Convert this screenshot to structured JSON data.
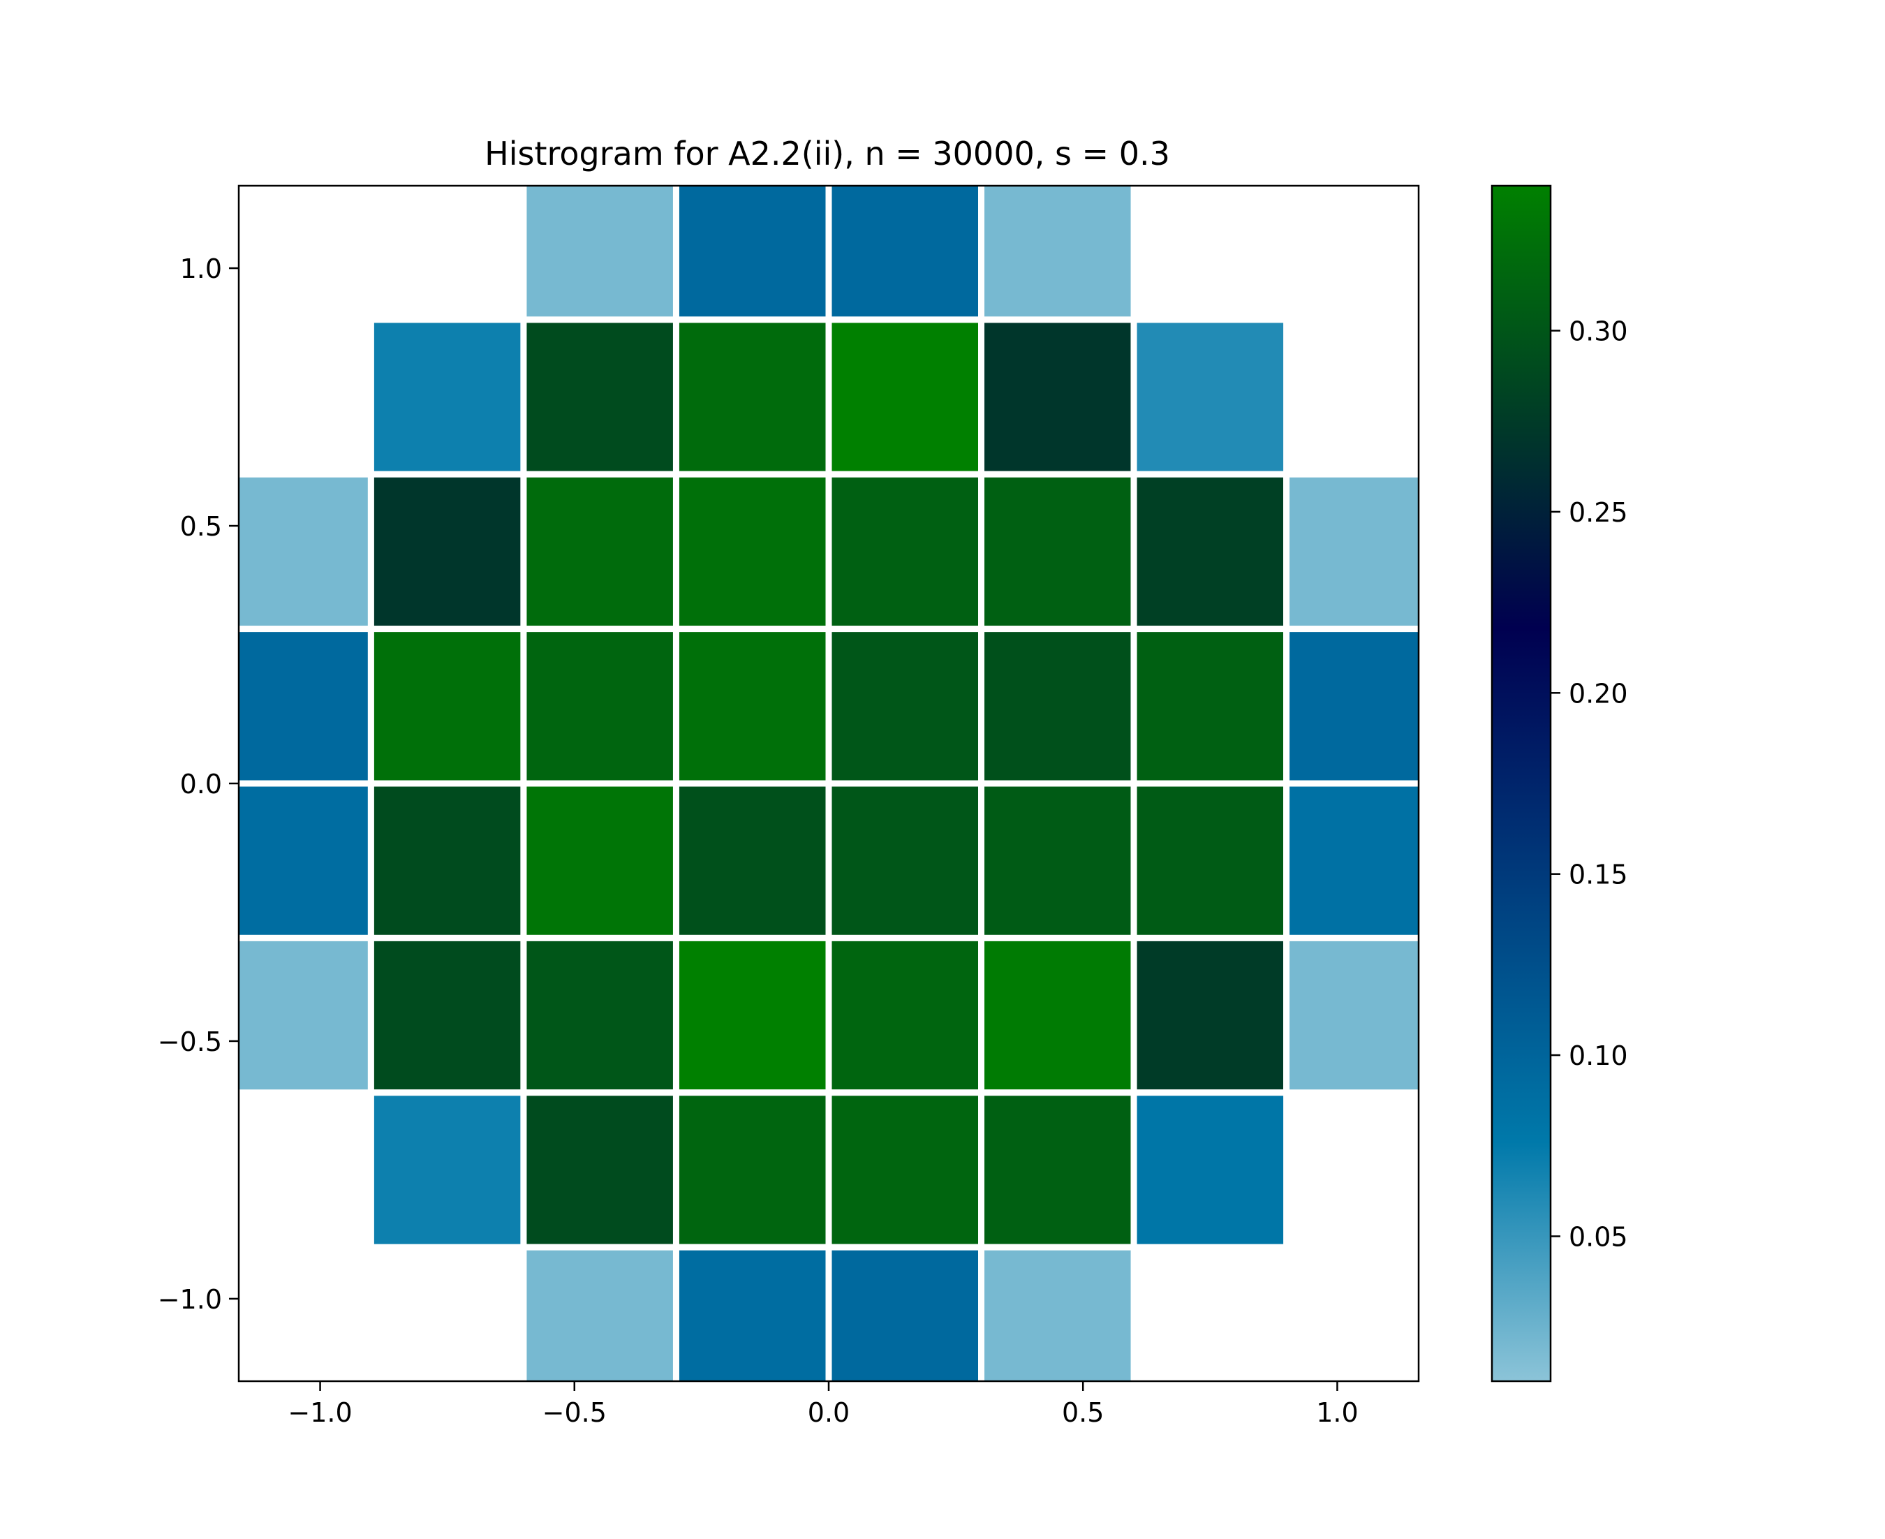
{
  "chart_data": {
    "type": "heatmap",
    "title": "Histrogram for A2.2(ii),  n = 30000, s = 0.3",
    "xlabel": "",
    "ylabel": "",
    "xlim": [
      -1.16,
      1.16
    ],
    "ylim": [
      -1.16,
      1.16
    ],
    "x_ticks": [
      -1.0,
      -0.5,
      0.0,
      0.5,
      1.0
    ],
    "x_tick_labels": [
      "−1.0",
      "−0.5",
      "0.0",
      "0.5",
      "1.0"
    ],
    "y_ticks": [
      -1.0,
      -0.5,
      0.0,
      0.5,
      1.0
    ],
    "y_tick_labels": [
      "−1.0",
      "−0.5",
      "0.0",
      "0.5",
      "1.0"
    ],
    "grid": false,
    "bin_edges": [
      -1.2,
      -0.9,
      -0.6,
      -0.3,
      0.0,
      0.3,
      0.6,
      0.9,
      1.2
    ],
    "values_rows_top_to_bottom": [
      [
        null,
        null,
        0.02,
        0.095,
        0.095,
        0.02,
        null,
        null
      ],
      [
        null,
        0.07,
        0.29,
        0.32,
        0.34,
        0.27,
        0.06,
        null
      ],
      [
        0.02,
        0.27,
        0.32,
        0.325,
        0.31,
        0.31,
        0.28,
        0.02
      ],
      [
        0.095,
        0.325,
        0.315,
        0.325,
        0.3,
        0.295,
        0.31,
        0.095
      ],
      [
        0.09,
        0.29,
        0.33,
        0.295,
        0.3,
        0.305,
        0.305,
        0.085
      ],
      [
        0.02,
        0.29,
        0.3,
        0.34,
        0.315,
        0.335,
        0.275,
        0.02
      ],
      [
        null,
        0.07,
        0.29,
        0.315,
        0.315,
        0.31,
        0.08,
        null
      ],
      [
        null,
        null,
        0.02,
        0.09,
        0.095,
        0.02,
        null,
        null
      ]
    ],
    "colorbar": {
      "min": 0.01,
      "max": 0.34,
      "ticks": [
        0.05,
        0.1,
        0.15,
        0.2,
        0.25,
        0.3
      ],
      "tick_labels": [
        "0.05",
        "0.10",
        "0.15",
        "0.20",
        "0.25",
        "0.30"
      ]
    },
    "colors": {
      "low": "#8cc4d8",
      "mid_low": "#0079aa",
      "mid": "#000050",
      "mid_high": "#003a28",
      "high": "#008000",
      "cell_border": "#ffffff"
    }
  }
}
